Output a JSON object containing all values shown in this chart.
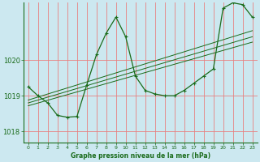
{
  "title": "Graphe pression niveau de la mer (hPa)",
  "bg_color": "#cce8f0",
  "grid_color": "#e88080",
  "line_color": "#1a6b1a",
  "xlim": [
    -0.5,
    23.5
  ],
  "ylim": [
    1017.7,
    1021.6
  ],
  "yticks": [
    1018,
    1019,
    1020
  ],
  "xticks": [
    0,
    1,
    2,
    3,
    4,
    5,
    6,
    7,
    8,
    9,
    10,
    11,
    12,
    13,
    14,
    15,
    16,
    17,
    18,
    19,
    20,
    21,
    22,
    23
  ],
  "main_x": [
    0,
    1,
    2,
    3,
    4,
    5,
    6,
    7,
    8,
    9,
    10,
    11,
    12,
    13,
    14,
    15,
    16,
    17,
    18,
    19,
    20,
    21,
    22,
    23
  ],
  "main_y": [
    1019.25,
    1019.0,
    1018.8,
    1018.45,
    1018.4,
    1018.42,
    1019.3,
    1020.15,
    1020.75,
    1021.2,
    1020.65,
    1019.55,
    1019.15,
    1019.05,
    1019.0,
    1019.0,
    1019.15,
    1019.35,
    1019.55,
    1019.75,
    1021.45,
    1021.6,
    1021.55,
    1021.2
  ],
  "trend1_x": [
    0,
    23
  ],
  "trend1_y": [
    1018.72,
    1020.5
  ],
  "trend2_x": [
    0,
    23
  ],
  "trend2_y": [
    1018.8,
    1020.65
  ],
  "trend3_x": [
    0,
    23
  ],
  "trend3_y": [
    1018.88,
    1020.82
  ]
}
